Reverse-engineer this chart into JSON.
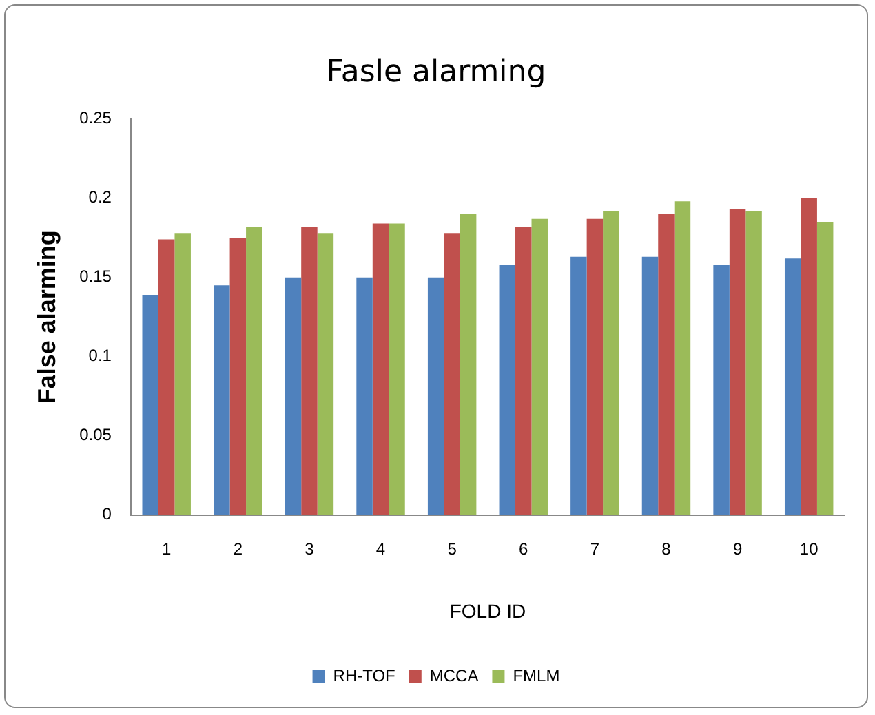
{
  "chart_data": {
    "type": "bar",
    "title": "Fasle alarming",
    "xlabel": "FOLD ID",
    "ylabel": "False alarming",
    "categories": [
      "1",
      "2",
      "3",
      "4",
      "5",
      "6",
      "7",
      "8",
      "9",
      "10"
    ],
    "series": [
      {
        "name": "RH-TOF",
        "color": "#4f81bd",
        "values": [
          0.139,
          0.145,
          0.15,
          0.15,
          0.15,
          0.158,
          0.163,
          0.163,
          0.158,
          0.162
        ]
      },
      {
        "name": "MCCA",
        "color": "#c0504d",
        "values": [
          0.174,
          0.175,
          0.182,
          0.184,
          0.178,
          0.182,
          0.187,
          0.19,
          0.193,
          0.2
        ]
      },
      {
        "name": "FMLM",
        "color": "#9bbb59",
        "values": [
          0.178,
          0.182,
          0.178,
          0.184,
          0.19,
          0.187,
          0.192,
          0.198,
          0.192,
          0.185
        ]
      }
    ],
    "ylim": [
      0,
      0.25
    ],
    "yticks": [
      0,
      0.05,
      0.1,
      0.15,
      0.2,
      0.25
    ],
    "grid": false,
    "legend": "bottom"
  }
}
